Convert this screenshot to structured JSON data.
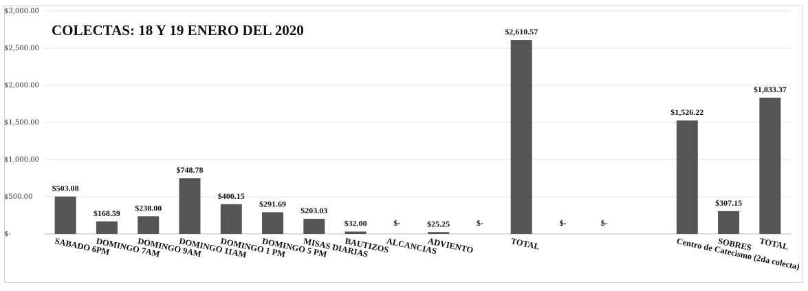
{
  "chart_data": {
    "type": "bar",
    "title": "COLECTAS:  18 Y 19 ENERO DEL 2020",
    "xlabel": "",
    "ylabel": "",
    "ylim": [
      0,
      3000
    ],
    "y_ticks": [
      "$-",
      "$500.00",
      "$1,000.00",
      "$1,500.00",
      "$2,000.00",
      "$2,500.00",
      "$3,000.00"
    ],
    "y_tick_values": [
      0,
      500,
      1000,
      1500,
      2000,
      2500,
      3000
    ],
    "grid": true,
    "legend": "none",
    "bar_color": "#555555",
    "categories": [
      "SABADO 6PM",
      "DOMINGO 7AM",
      "DOMINGO 9AM",
      "DOMINGO 11AM",
      "DOMINGO 1 PM",
      "DOMINGO 5 PM",
      "MISAS DIARIAS",
      "BAUTIZOS",
      "ALCANCIAS",
      "ADVIENTO",
      "",
      "TOTAL",
      "",
      "",
      "",
      "Centro de Catecismo (2da colecta)",
      "SOBRES",
      "TOTAL"
    ],
    "values": [
      503.08,
      168.59,
      238.0,
      748.78,
      400.15,
      291.69,
      203.03,
      32.0,
      0,
      25.25,
      0,
      2610.57,
      0,
      0,
      0,
      1526.22,
      307.15,
      1833.37
    ],
    "data_labels": [
      "$503.08",
      "$168.59",
      "$238.00",
      "$748.78",
      "$400.15",
      "$291.69",
      "$203.03",
      "$32.00",
      "$-",
      "$25.25",
      "$-",
      "$2,610.57",
      "$-",
      "$-",
      "",
      "$1,526.22",
      "$307.15",
      "$1,833.37"
    ]
  }
}
